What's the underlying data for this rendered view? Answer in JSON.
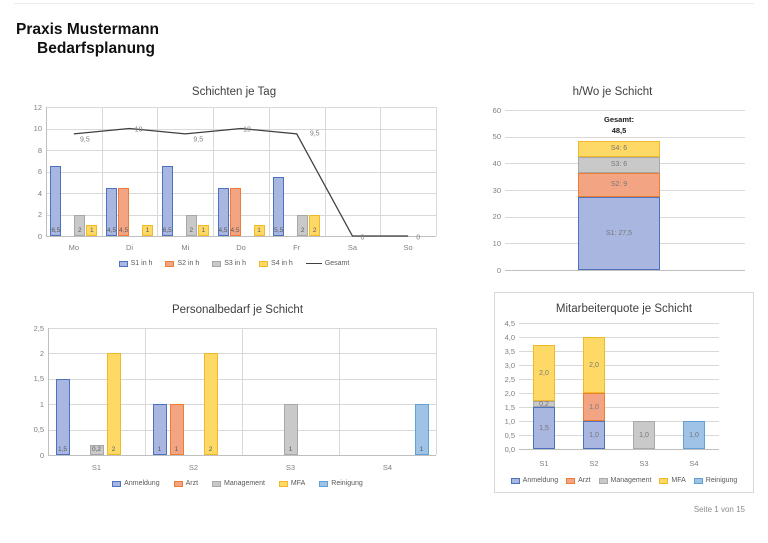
{
  "page": {
    "title_line1": "Praxis Mustermann",
    "title_line2": "Bedarfsplanung",
    "footer": "Seite 1 von 15"
  },
  "colors": {
    "s1": {
      "fill": "#A9B7E0",
      "border": "#4C72C0"
    },
    "s2": {
      "fill": "#F3A583",
      "border": "#EC7D33"
    },
    "s3": {
      "fill": "#C9C9C9",
      "border": "#A8A8A8"
    },
    "s4": {
      "fill": "#FFD965",
      "border": "#EFB929"
    },
    "s5": {
      "fill": "#9EC3E7",
      "border": "#63A0D4"
    },
    "line": "#3F3F3F",
    "grid": "#D9D9D9",
    "axis_text": "#7F7F7F"
  },
  "chart_data": [
    {
      "type": "bar+line",
      "title": "Schichten je Tag",
      "xlabel": "",
      "ylabel": "",
      "categories": [
        "Mo",
        "Di",
        "Mi",
        "Do",
        "Fr",
        "Sa",
        "So"
      ],
      "ylim": [
        0,
        12
      ],
      "yticks": [
        "0",
        "2",
        "4",
        "6",
        "8",
        "10",
        "12"
      ],
      "series": [
        {
          "name": "S1 in h",
          "key": "s1",
          "values": [
            6.5,
            4.5,
            6.5,
            4.5,
            5.5,
            0,
            0
          ],
          "labels": [
            "6,5",
            "4,5",
            "6,5",
            "4,5",
            "5,5",
            "",
            ""
          ]
        },
        {
          "name": "S2 in h",
          "key": "s2",
          "values": [
            0,
            4.5,
            0,
            4.5,
            0,
            0,
            0
          ],
          "labels": [
            "",
            "4,5",
            "",
            "4,5",
            "",
            "",
            ""
          ]
        },
        {
          "name": "S3 in h",
          "key": "s3",
          "values": [
            2,
            0,
            2,
            0,
            2,
            0,
            0
          ],
          "labels": [
            "2",
            "",
            "2",
            "",
            "2",
            "",
            ""
          ]
        },
        {
          "name": "S4 in h",
          "key": "s4",
          "values": [
            1,
            1,
            1,
            1,
            2,
            0,
            0
          ],
          "labels": [
            "1",
            "1",
            "1",
            "1",
            "2",
            "",
            ""
          ]
        }
      ],
      "line_series": {
        "name": "Gesamt",
        "values": [
          9.5,
          10,
          9.5,
          10,
          9.5,
          0,
          0
        ],
        "labels": [
          "9,5",
          "10",
          "9,5",
          "10",
          "9,5",
          "0",
          "0"
        ]
      },
      "legend": [
        {
          "label": "S1 in h",
          "key": "s1",
          "marker": "box"
        },
        {
          "label": "S2 in h",
          "key": "s2",
          "marker": "box"
        },
        {
          "label": "S3 in h",
          "key": "s3",
          "marker": "box"
        },
        {
          "label": "S4 in h",
          "key": "s4",
          "marker": "box"
        },
        {
          "label": "Gesamt",
          "key": "line",
          "marker": "line"
        }
      ],
      "legend_position": "bottom"
    },
    {
      "type": "stacked-bar",
      "title": "h/Wo je Schicht",
      "xlabel": "",
      "ylabel": "",
      "categories": [
        ""
      ],
      "ylim": [
        0,
        60
      ],
      "yticks": [
        "0",
        "10",
        "20",
        "30",
        "40",
        "50",
        "60"
      ],
      "total_label": [
        "Gesamt:",
        "48,5"
      ],
      "stack": [
        {
          "name": "S1",
          "key": "s1",
          "value": 27.5,
          "label": "S1: 27,5"
        },
        {
          "name": "S2",
          "key": "s2",
          "value": 9,
          "label": "S2: 9"
        },
        {
          "name": "S3",
          "key": "s3",
          "value": 6,
          "label": "S3: 6"
        },
        {
          "name": "S4",
          "key": "s4",
          "value": 6,
          "label": "S4: 6"
        }
      ]
    },
    {
      "type": "bar",
      "title": "Personalbedarf je Schicht",
      "xlabel": "",
      "ylabel": "",
      "categories": [
        "S1",
        "S2",
        "S3",
        "S4"
      ],
      "ylim": [
        0,
        2.5
      ],
      "yticks": [
        "0",
        "0,5",
        "1",
        "1,5",
        "2",
        "2,5"
      ],
      "series": [
        {
          "name": "Anmeldung",
          "key": "s1",
          "values": [
            1.5,
            1,
            0,
            0
          ],
          "labels": [
            "1,5",
            "1",
            "",
            ""
          ]
        },
        {
          "name": "Arzt",
          "key": "s2",
          "values": [
            0,
            1,
            0,
            0
          ],
          "labels": [
            "",
            "1",
            "",
            ""
          ]
        },
        {
          "name": "Management",
          "key": "s3",
          "values": [
            0.2,
            0,
            1,
            0
          ],
          "labels": [
            "0,2",
            "",
            "1",
            ""
          ]
        },
        {
          "name": "MFA",
          "key": "s4",
          "values": [
            2,
            2,
            0,
            0
          ],
          "labels": [
            "2",
            "2",
            "",
            ""
          ]
        },
        {
          "name": "Reinigung",
          "key": "s5",
          "values": [
            0,
            0,
            0,
            1
          ],
          "labels": [
            "",
            "",
            "",
            "1"
          ]
        }
      ],
      "legend": [
        {
          "label": "Anmeldung",
          "key": "s1",
          "marker": "box"
        },
        {
          "label": "Arzt",
          "key": "s2",
          "marker": "box"
        },
        {
          "label": "Management",
          "key": "s3",
          "marker": "box"
        },
        {
          "label": "MFA",
          "key": "s4",
          "marker": "box"
        },
        {
          "label": "Reinigung",
          "key": "s5",
          "marker": "box"
        }
      ],
      "legend_position": "bottom"
    },
    {
      "type": "stacked-bar",
      "title": "Mitarbeiterquote je Schicht",
      "xlabel": "",
      "ylabel": "",
      "categories": [
        "S1",
        "S2",
        "S3",
        "S4"
      ],
      "ylim": [
        0,
        4.5
      ],
      "yticks": [
        "0,0",
        "0,5",
        "1,0",
        "1,5",
        "2,0",
        "2,5",
        "3,0",
        "3,5",
        "4,0",
        "4,5"
      ],
      "stacks": [
        [
          {
            "name": "Anmeldung",
            "key": "s1",
            "value": 1.5,
            "label": "1,5"
          },
          {
            "name": "Management",
            "key": "s3",
            "value": 0.2,
            "label": "0,2"
          },
          {
            "name": "MFA",
            "key": "s4",
            "value": 2,
            "label": "2,0"
          }
        ],
        [
          {
            "name": "Anmeldung",
            "key": "s1",
            "value": 1,
            "label": "1,0"
          },
          {
            "name": "Arzt",
            "key": "s2",
            "value": 1,
            "label": "1,0"
          },
          {
            "name": "MFA",
            "key": "s4",
            "value": 2,
            "label": "2,0"
          }
        ],
        [
          {
            "name": "Management",
            "key": "s3",
            "value": 1,
            "label": "1,0"
          }
        ],
        [
          {
            "name": "Reinigung",
            "key": "s5",
            "value": 1,
            "label": "1,0"
          }
        ]
      ],
      "legend": [
        {
          "label": "Anmeldung",
          "key": "s1",
          "marker": "box"
        },
        {
          "label": "Arzt",
          "key": "s2",
          "marker": "box"
        },
        {
          "label": "Management",
          "key": "s3",
          "marker": "box"
        },
        {
          "label": "MFA",
          "key": "s4",
          "marker": "box"
        },
        {
          "label": "Reinigung",
          "key": "s5",
          "marker": "box"
        }
      ],
      "legend_position": "bottom"
    }
  ]
}
